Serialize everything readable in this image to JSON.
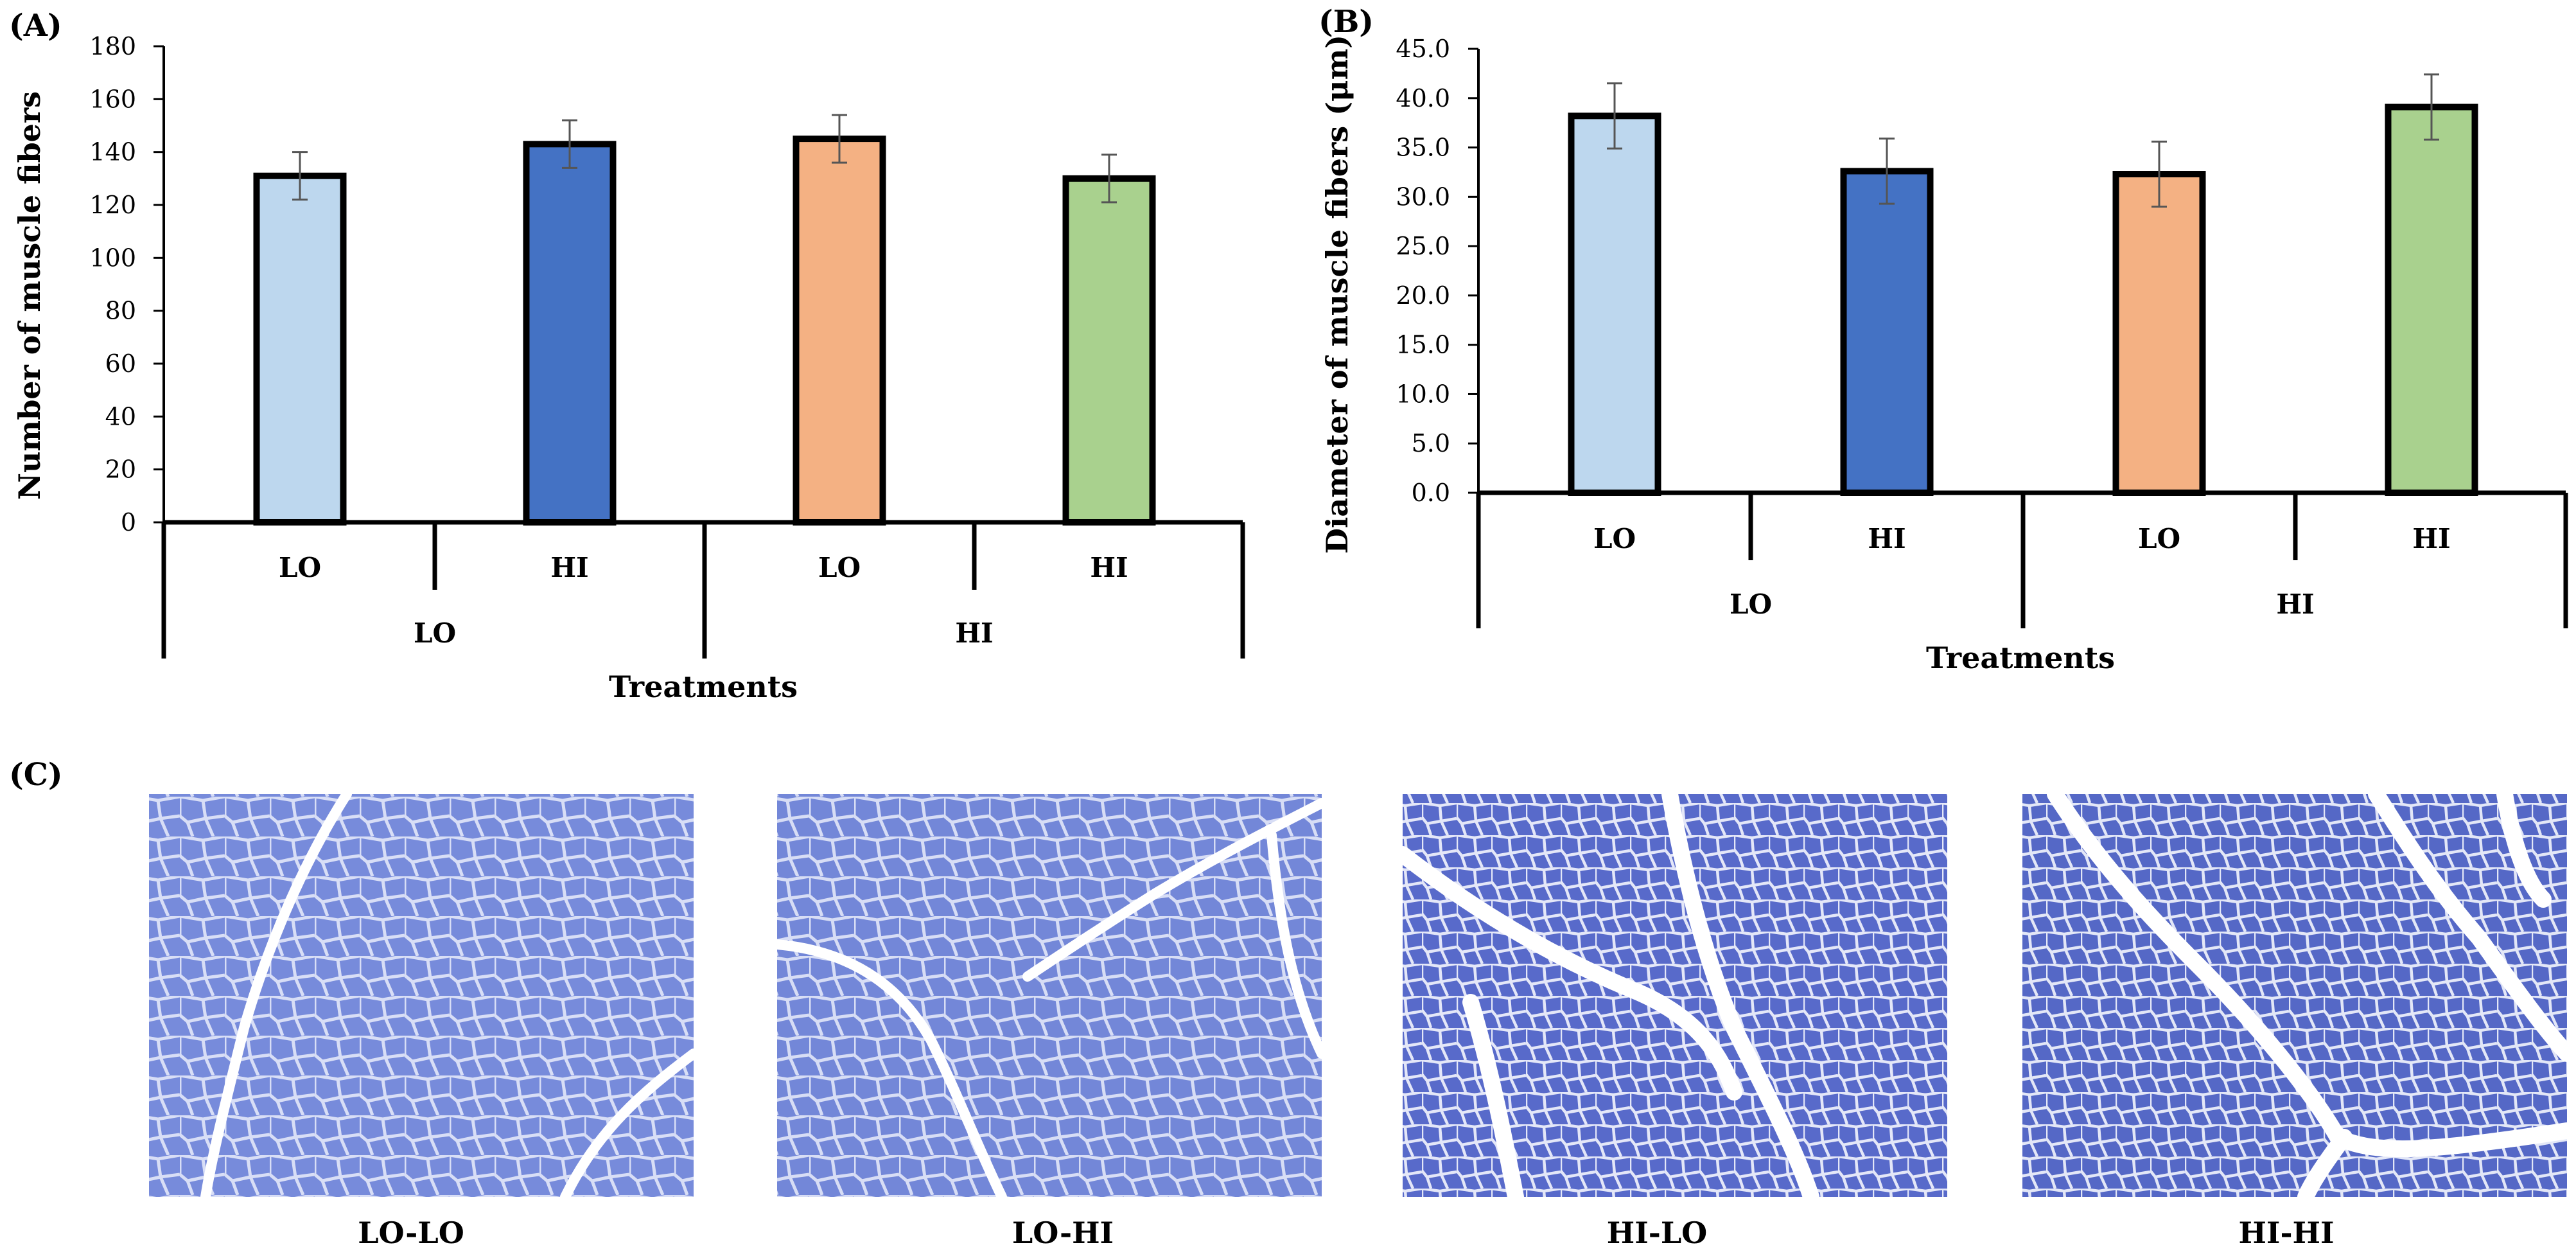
{
  "chart_data": [
    {
      "type": "bar",
      "panel": "(A)",
      "title": "",
      "xlabel": "Treatments",
      "ylabel": "Number of muscle fibers",
      "ylim": [
        0,
        180
      ],
      "ytick_step": 20,
      "ytick_decimals": 0,
      "categories": [
        "LO",
        "HI",
        "LO",
        "HI"
      ],
      "groups": [
        "LO",
        "HI"
      ],
      "values": [
        131,
        143,
        145,
        130
      ],
      "errors": [
        9,
        9,
        9,
        9
      ],
      "colors": [
        "#bdd7ee",
        "#4472c4",
        "#f4b183",
        "#a9d18e"
      ]
    },
    {
      "type": "bar",
      "panel": "(B)",
      "title": "",
      "xlabel": "Treatments",
      "ylabel": "Diameter of muscle fibers (μm)",
      "ylim": [
        0,
        45
      ],
      "ytick_step": 5,
      "ytick_decimals": 1,
      "categories": [
        "LO",
        "HI",
        "LO",
        "HI"
      ],
      "groups": [
        "LO",
        "HI"
      ],
      "values": [
        38.2,
        32.6,
        32.3,
        39.1
      ],
      "errors": [
        3.3,
        3.3,
        3.3,
        3.3
      ],
      "colors": [
        "#bdd7ee",
        "#4472c4",
        "#f4b183",
        "#a9d18e"
      ]
    }
  ],
  "micrographs": {
    "panel": "(C)",
    "items": [
      {
        "caption": "LO-LO",
        "base": "#7f93df",
        "cells": "#6f82d6",
        "gap": "#ffffff"
      },
      {
        "caption": "LO-HI",
        "base": "#7b8fdc",
        "cells": "#6a7ed3",
        "gap": "#ffffff"
      },
      {
        "caption": "HI-LO",
        "base": "#5f72d0",
        "cells": "#4f62c4",
        "gap": "#ffffff"
      },
      {
        "caption": "HI-HI",
        "base": "#5d70cc",
        "cells": "#4c5fbf",
        "gap": "#ffffff"
      }
    ]
  }
}
